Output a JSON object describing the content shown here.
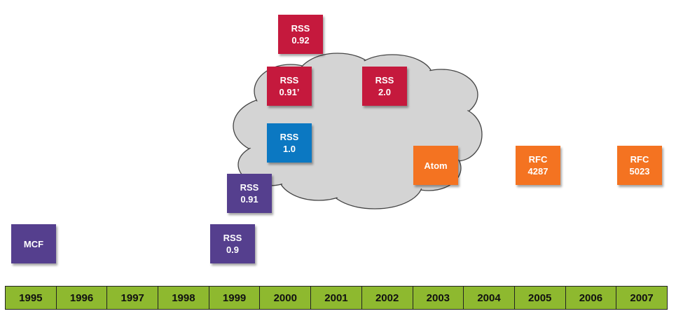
{
  "colors": {
    "purple": "#553f8e",
    "red": "#c5193d",
    "blue": "#0b78c2",
    "orange": "#f47321",
    "timeline": "#8eb92f",
    "cloud": "#d4d4d4"
  },
  "boxes": {
    "mcf": {
      "line1": "MCF"
    },
    "rss09": {
      "line1": "RSS",
      "line2": "0.9"
    },
    "rss091": {
      "line1": "RSS",
      "line2": "0.91"
    },
    "rss10": {
      "line1": "RSS",
      "line2": "1.0"
    },
    "rss091p": {
      "line1": "RSS",
      "line2": "0.91’"
    },
    "rss092": {
      "line1": "RSS",
      "line2": "0.92"
    },
    "rss20": {
      "line1": "RSS",
      "line2": "2.0"
    },
    "atom": {
      "line1": "Atom"
    },
    "rfc4287": {
      "line1": "RFC",
      "line2": "4287"
    },
    "rfc5023": {
      "line1": "RFC",
      "line2": "5023"
    }
  },
  "timeline": {
    "years": [
      "1995",
      "1996",
      "1997",
      "1998",
      "1999",
      "2000",
      "2001",
      "2002",
      "2003",
      "2004",
      "2005",
      "2006",
      "2007"
    ]
  }
}
